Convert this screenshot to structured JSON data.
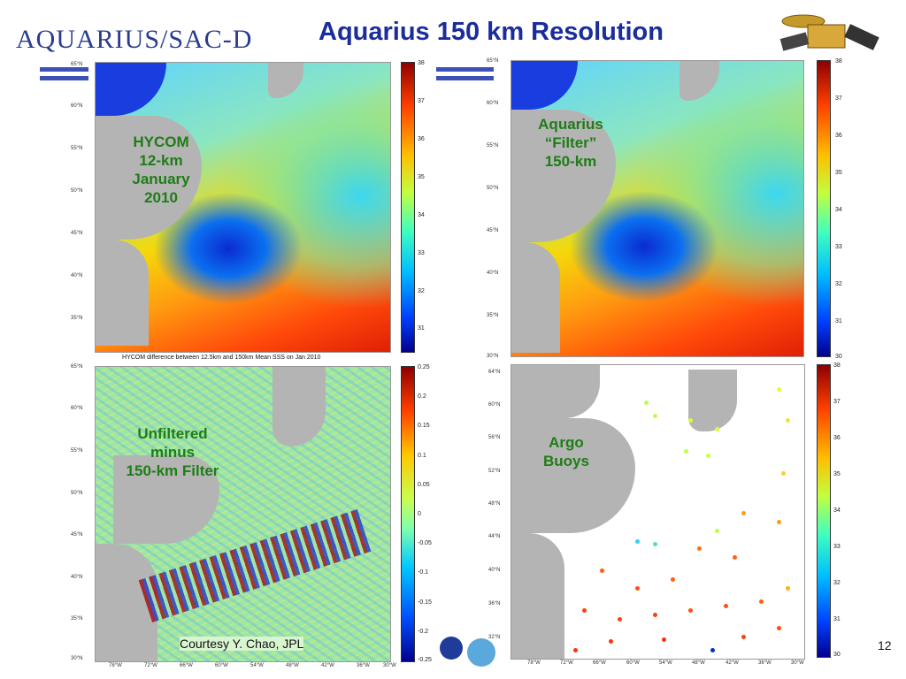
{
  "header": {
    "logo_text": "AQUARIUS/SAC-D",
    "title": "Aquarius 150 km Resolution"
  },
  "colors": {
    "title": "#1a2d9a",
    "label_green": "#1f7d16",
    "land": "#b4b4b4"
  },
  "panels": {
    "top_left": {
      "label_lines": [
        "HYCOM",
        "12-km",
        "January",
        "2010"
      ],
      "caption": "HYCOM difference between 12.5km and 150km  Mean SSS  on Jan 2010",
      "lat_ticks": [
        "65°N",
        "60°N",
        "55°N",
        "50°N",
        "45°N",
        "40°N",
        "35°N"
      ],
      "colorbar_ticks": [
        "38",
        "37",
        "36",
        "35",
        "34",
        "33",
        "32",
        "31"
      ]
    },
    "top_right": {
      "label_lines": [
        "Aquarius",
        "“Filter”",
        "150-km"
      ],
      "lat_ticks": [
        "65°N",
        "60°N",
        "55°N",
        "50°N",
        "45°N",
        "40°N",
        "35°N",
        "30°N"
      ],
      "colorbar_ticks": [
        "38",
        "37",
        "36",
        "35",
        "34",
        "33",
        "32",
        "31",
        "30"
      ]
    },
    "bottom_left": {
      "label_lines": [
        "Unfiltered",
        "minus",
        "150-km Filter"
      ],
      "lat_ticks": [
        "65°N",
        "60°N",
        "55°N",
        "50°N",
        "45°N",
        "40°N",
        "35°N",
        "30°N"
      ],
      "lon_ticks": [
        "78°W",
        "72°W",
        "66°W",
        "60°W",
        "54°W",
        "48°W",
        "42°W",
        "36°W",
        "30°W"
      ],
      "colorbar_ticks": [
        "0.25",
        "0.2",
        "0.15",
        "0.1",
        "0.05",
        "0",
        "-0.05",
        "-0.1",
        "-0.15",
        "-0.2",
        "-0.25"
      ]
    },
    "bottom_right": {
      "label_lines": [
        "Argo",
        "Buoys"
      ],
      "lat_ticks": [
        "64°N",
        "60°N",
        "56°N",
        "52°N",
        "48°N",
        "44°N",
        "40°N",
        "36°N",
        "32°N"
      ],
      "lon_ticks": [
        "78°W",
        "72°W",
        "66°W",
        "60°W",
        "54°W",
        "48°W",
        "42°W",
        "36°W",
        "30°W"
      ],
      "colorbar_ticks": [
        "38",
        "37",
        "36",
        "35",
        "34",
        "33",
        "32",
        "31",
        "30"
      ]
    }
  },
  "footer": {
    "courtesy": "Courtesy Y. Chao, JPL",
    "page_number": "12"
  },
  "icons": [
    "satellite-icon",
    "nasa-logo-icon",
    "jpl-logo-icon"
  ]
}
